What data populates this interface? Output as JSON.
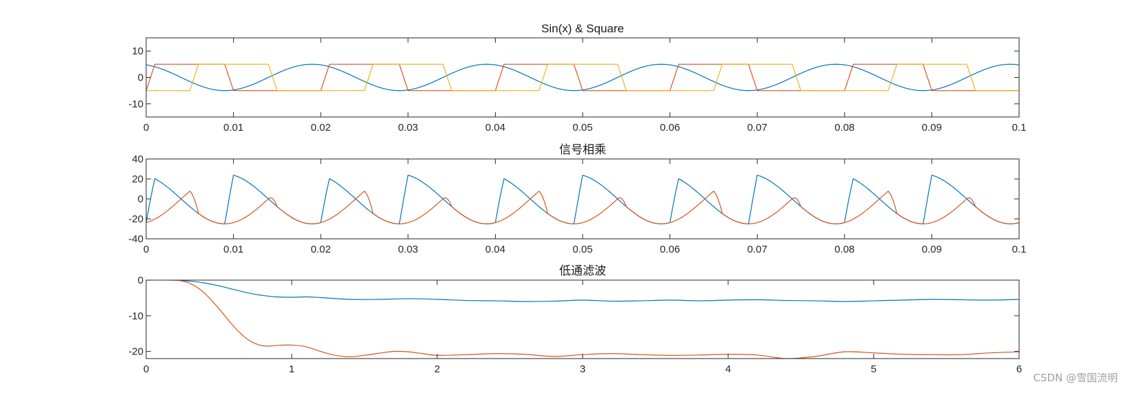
{
  "watermark": "CSDN @雪国流明",
  "colors": {
    "blue": "#0072BD",
    "orange": "#D95319",
    "yellow": "#EDB120"
  },
  "chart_data": [
    {
      "id": "top",
      "type": "line",
      "title": "Sin(x) & Square",
      "xlabel": "",
      "ylabel": "",
      "xlim": [
        0,
        0.1
      ],
      "ylim": [
        -15,
        15
      ],
      "xticks": [
        0,
        0.01,
        0.02,
        0.03,
        0.04,
        0.05,
        0.06,
        0.07,
        0.08,
        0.09,
        0.1
      ],
      "xticklabels": [
        "0",
        "0.01",
        "0.02",
        "0.03",
        "0.04",
        "0.05",
        "0.06",
        "0.07",
        "0.08",
        "0.09",
        "0.1"
      ],
      "yticks": [
        10,
        0,
        -10
      ],
      "yticklabels": [
        "10",
        "0",
        "-10"
      ],
      "series": [
        {
          "color": "blue",
          "kind": "sin",
          "amplitude": 5,
          "period": 0.02,
          "phase_peak": 0.019
        },
        {
          "color": "orange",
          "kind": "square",
          "amplitude": 5,
          "period": 0.02,
          "high_start": 0.0,
          "high_end": 0.009,
          "ramp": 0.001
        },
        {
          "color": "yellow",
          "kind": "square",
          "amplitude": 5,
          "period": 0.02,
          "high_start": 0.005,
          "high_end": 0.014,
          "ramp": 0.001,
          "start_low": true
        }
      ]
    },
    {
      "id": "middle",
      "type": "line",
      "title": "信号相乘",
      "xlabel": "",
      "ylabel": "",
      "xlim": [
        0,
        0.1
      ],
      "ylim": [
        -40,
        40
      ],
      "xticks": [
        0,
        0.01,
        0.02,
        0.03,
        0.04,
        0.05,
        0.06,
        0.07,
        0.08,
        0.09,
        0.1
      ],
      "xticklabels": [
        "0",
        "0.01",
        "0.02",
        "0.03",
        "0.04",
        "0.05",
        "0.06",
        "0.07",
        "0.08",
        "0.09",
        "0.1"
      ],
      "yticks": [
        40,
        20,
        0,
        -20,
        -40
      ],
      "yticklabels": [
        "40",
        "20",
        "0",
        "-20",
        "-40"
      ],
      "series": [
        {
          "color": "blue",
          "kind": "product",
          "with": "orange"
        },
        {
          "color": "orange",
          "kind": "product",
          "with": "yellow"
        }
      ]
    },
    {
      "id": "bottom",
      "type": "line",
      "title": "低通滤波",
      "xlabel": "",
      "ylabel": "",
      "xlim": [
        0,
        6
      ],
      "ylim": [
        -22,
        0
      ],
      "xticks": [
        0,
        1,
        2,
        3,
        4,
        5,
        6
      ],
      "xticklabels": [
        "0",
        "1",
        "2",
        "3",
        "4",
        "5",
        "6"
      ],
      "yticks": [
        0,
        -10,
        -20
      ],
      "yticklabels": [
        "0",
        "-10",
        "-20"
      ],
      "series": [
        {
          "color": "blue",
          "x": [
            0,
            0.2,
            0.3,
            0.4,
            0.5,
            0.6,
            0.7,
            0.8,
            0.9,
            1.0,
            1.1,
            1.2,
            1.4,
            1.6,
            1.8,
            2.0,
            2.2,
            2.4,
            2.6,
            2.8,
            3.0,
            3.2,
            3.4,
            3.6,
            3.8,
            4.0,
            4.2,
            4.4,
            4.6,
            4.8,
            5.0,
            5.2,
            5.4,
            5.6,
            5.8,
            6.0
          ],
          "y": [
            0,
            0,
            -0.3,
            -0.8,
            -1.6,
            -2.6,
            -3.6,
            -4.3,
            -4.7,
            -4.8,
            -4.7,
            -4.9,
            -5.4,
            -5.4,
            -5.2,
            -5.4,
            -5.7,
            -5.8,
            -6.0,
            -5.9,
            -5.6,
            -5.9,
            -5.8,
            -5.6,
            -5.8,
            -5.6,
            -5.5,
            -5.7,
            -5.8,
            -6.0,
            -5.8,
            -5.6,
            -5.4,
            -5.5,
            -5.6,
            -5.4
          ]
        },
        {
          "color": "orange",
          "x": [
            0,
            0.2,
            0.25,
            0.3,
            0.35,
            0.4,
            0.45,
            0.5,
            0.55,
            0.6,
            0.65,
            0.7,
            0.75,
            0.8,
            0.85,
            0.9,
            1.0,
            1.1,
            1.2,
            1.3,
            1.4,
            1.5,
            1.6,
            1.7,
            1.8,
            1.9,
            2.0,
            2.2,
            2.4,
            2.6,
            2.8,
            3.0,
            3.2,
            3.4,
            3.6,
            3.8,
            4.0,
            4.2,
            4.4,
            4.6,
            4.8,
            5.0,
            5.2,
            5.4,
            5.6,
            5.8,
            6.0
          ],
          "y": [
            0,
            0,
            -0.3,
            -0.9,
            -2.0,
            -3.6,
            -5.7,
            -8.0,
            -10.5,
            -12.9,
            -15.0,
            -16.7,
            -17.8,
            -18.4,
            -18.5,
            -18.3,
            -18.2,
            -18.7,
            -20.0,
            -21.1,
            -21.5,
            -21.1,
            -20.5,
            -20.0,
            -20.1,
            -20.6,
            -21.1,
            -20.9,
            -20.6,
            -20.8,
            -21.4,
            -20.9,
            -20.6,
            -20.9,
            -21.1,
            -21.0,
            -20.8,
            -21.0,
            -22.0,
            -21.4,
            -20.1,
            -20.4,
            -20.8,
            -20.9,
            -20.9,
            -20.4,
            -20.1
          ]
        }
      ]
    }
  ]
}
